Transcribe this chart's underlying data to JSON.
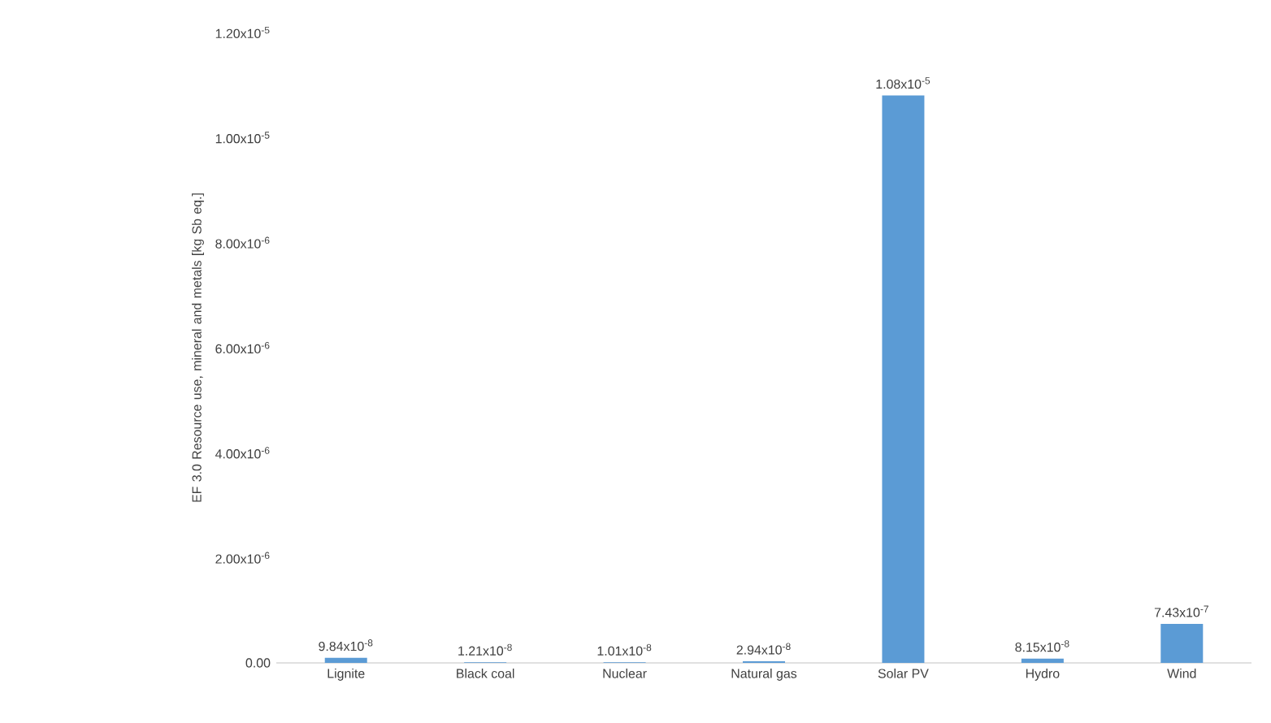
{
  "chart_data": {
    "type": "bar",
    "ylabel": "EF 3.0 Resource use, mineral and metals [kg Sb eq.]",
    "categories": [
      "Lignite",
      "Black coal",
      "Nuclear",
      "Natural gas",
      "Solar PV",
      "Hydro",
      "Wind"
    ],
    "values": [
      9.84e-08,
      1.21e-08,
      1.01e-08,
      2.94e-08,
      1.08e-05,
      8.15e-08,
      7.43e-07
    ],
    "value_labels": [
      "9.84x10$^{-8}$",
      "1.21x10$^{-8}$",
      "1.01x10$^{-8}$",
      "2.94x10$^{-8}$",
      "1.08x10$^{-5}$",
      "8.15x10$^{-8}$",
      "7.43x10$^{-7}$"
    ],
    "color": "#5b9bd5",
    "ylim": [
      0,
      1.2e-05
    ],
    "yticks": [
      {
        "value": 0,
        "label": "0.00"
      },
      {
        "value": 2e-06,
        "label": "2.00x10$^{-6}$"
      },
      {
        "value": 4e-06,
        "label": "4.00x10$^{-6}$"
      },
      {
        "value": 6e-06,
        "label": "6.00x10$^{-6}$"
      },
      {
        "value": 8e-06,
        "label": "8.00x10$^{-6}$"
      },
      {
        "value": 1e-05,
        "label": "1.00x10$^{-5}$"
      },
      {
        "value": 1.2e-05,
        "label": "1.20x10$^{-5}$"
      }
    ]
  }
}
